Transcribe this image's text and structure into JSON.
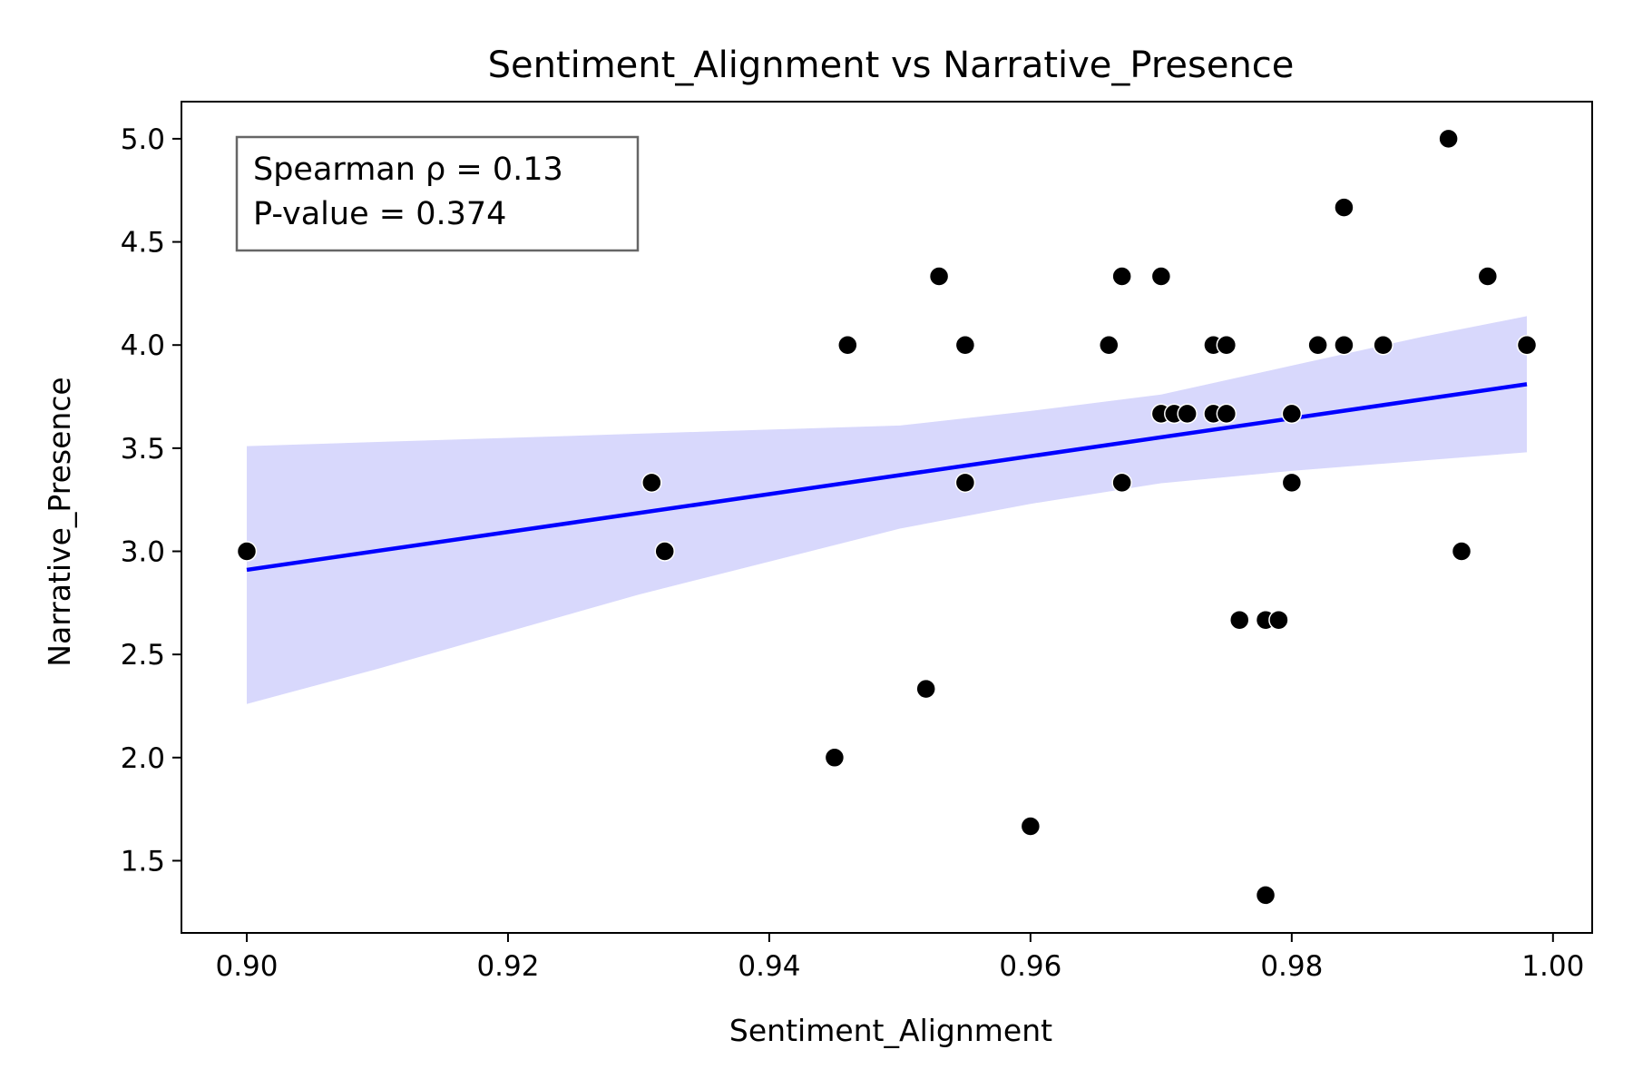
{
  "chart_data": {
    "type": "scatter",
    "title": "Sentiment_Alignment vs Narrative_Presence",
    "xlabel": "Sentiment_Alignment",
    "ylabel": "Narrative_Presence",
    "xlim": [
      0.895,
      1.003
    ],
    "ylim": [
      1.15,
      5.18
    ],
    "xticks": [
      0.9,
      0.92,
      0.94,
      0.96,
      0.98,
      1.0
    ],
    "xtick_labels": [
      "0.90",
      "0.92",
      "0.94",
      "0.96",
      "0.98",
      "1.00"
    ],
    "yticks": [
      1.5,
      2.0,
      2.5,
      3.0,
      3.5,
      4.0,
      4.5,
      5.0
    ],
    "ytick_labels": [
      "1.5",
      "2.0",
      "2.5",
      "3.0",
      "3.5",
      "4.0",
      "4.5",
      "5.0"
    ],
    "grid": false,
    "stats": {
      "line1": "Spearman ρ = 0.13",
      "line2": "P-value = 0.374"
    },
    "point_color": "#000000",
    "points": [
      {
        "x": 0.9,
        "y": 3.0
      },
      {
        "x": 0.931,
        "y": 3.333
      },
      {
        "x": 0.932,
        "y": 3.0
      },
      {
        "x": 0.945,
        "y": 2.0
      },
      {
        "x": 0.946,
        "y": 4.0
      },
      {
        "x": 0.952,
        "y": 2.333
      },
      {
        "x": 0.953,
        "y": 4.333
      },
      {
        "x": 0.955,
        "y": 4.0
      },
      {
        "x": 0.955,
        "y": 3.333
      },
      {
        "x": 0.96,
        "y": 1.667
      },
      {
        "x": 0.966,
        "y": 4.0
      },
      {
        "x": 0.967,
        "y": 4.333
      },
      {
        "x": 0.967,
        "y": 3.333
      },
      {
        "x": 0.97,
        "y": 4.333
      },
      {
        "x": 0.97,
        "y": 3.667
      },
      {
        "x": 0.971,
        "y": 3.667
      },
      {
        "x": 0.972,
        "y": 3.667
      },
      {
        "x": 0.974,
        "y": 4.0
      },
      {
        "x": 0.975,
        "y": 4.0
      },
      {
        "x": 0.974,
        "y": 3.667
      },
      {
        "x": 0.975,
        "y": 3.667
      },
      {
        "x": 0.976,
        "y": 2.667
      },
      {
        "x": 0.978,
        "y": 2.667
      },
      {
        "x": 0.979,
        "y": 2.667
      },
      {
        "x": 0.978,
        "y": 1.333
      },
      {
        "x": 0.98,
        "y": 3.667
      },
      {
        "x": 0.98,
        "y": 3.333
      },
      {
        "x": 0.982,
        "y": 4.0
      },
      {
        "x": 0.984,
        "y": 4.0
      },
      {
        "x": 0.984,
        "y": 4.667
      },
      {
        "x": 0.987,
        "y": 4.0
      },
      {
        "x": 0.992,
        "y": 5.0
      },
      {
        "x": 0.993,
        "y": 3.0
      },
      {
        "x": 0.995,
        "y": 4.333
      },
      {
        "x": 0.998,
        "y": 4.0
      }
    ],
    "regression": {
      "color": "#0000ff",
      "band_color": "#d8d8fc",
      "line": [
        {
          "x": 0.9,
          "y": 2.91
        },
        {
          "x": 0.998,
          "y": 3.81
        }
      ],
      "band": [
        {
          "x": 0.9,
          "lower": 2.26,
          "upper": 3.51
        },
        {
          "x": 0.91,
          "lower": 2.43,
          "upper": 3.53
        },
        {
          "x": 0.92,
          "lower": 2.61,
          "upper": 3.55
        },
        {
          "x": 0.93,
          "lower": 2.79,
          "upper": 3.57
        },
        {
          "x": 0.94,
          "lower": 2.95,
          "upper": 3.59
        },
        {
          "x": 0.95,
          "lower": 3.11,
          "upper": 3.61
        },
        {
          "x": 0.96,
          "lower": 3.23,
          "upper": 3.68
        },
        {
          "x": 0.97,
          "lower": 3.33,
          "upper": 3.76
        },
        {
          "x": 0.98,
          "lower": 3.39,
          "upper": 3.9
        },
        {
          "x": 0.99,
          "lower": 3.44,
          "upper": 4.04
        },
        {
          "x": 0.998,
          "lower": 3.48,
          "upper": 4.14
        }
      ]
    }
  }
}
